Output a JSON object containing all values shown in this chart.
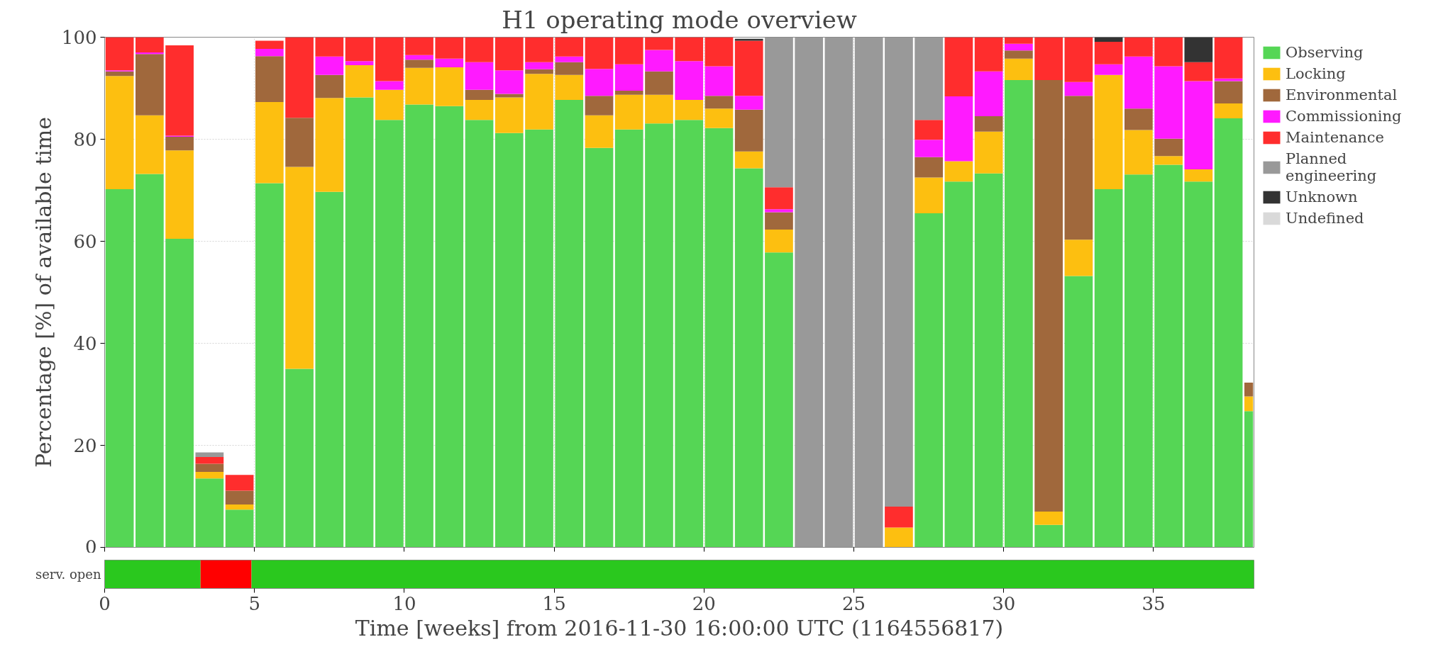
{
  "chart_data": [
    {
      "type": "bar",
      "stacked": true,
      "title": "H1 operating mode overview",
      "ylabel": "Percentage [%] of available time",
      "x": [
        0.5,
        1.5,
        2.5,
        3.5,
        4.5,
        5.5,
        6.5,
        7.5,
        8.5,
        9.5,
        10.5,
        11.5,
        12.5,
        13.5,
        14.5,
        15.5,
        16.5,
        17.5,
        18.5,
        19.5,
        20.5,
        21.5,
        22.5,
        23.5,
        24.5,
        25.5,
        26.5,
        27.5,
        28.5,
        29.5,
        30.5,
        31.5,
        32.5,
        33.5,
        34.5,
        35.5,
        36.5,
        37.5,
        38.175
      ],
      "xlim": [
        0,
        38.35
      ],
      "ylim": [
        0,
        100
      ],
      "xticks": [
        0,
        5,
        10,
        15,
        20,
        25,
        30,
        35
      ],
      "yticks": [
        0,
        20,
        40,
        60,
        80,
        100
      ],
      "tick_labels": "y",
      "grid": true,
      "legend": "right",
      "series": [
        {
          "name": "Observing",
          "color": "#55d655",
          "values": [
            70.2,
            73.2,
            60.5,
            13.5,
            7.4,
            71.4,
            35.0,
            69.7,
            88.2,
            83.8,
            86.8,
            86.5,
            83.8,
            81.2,
            81.9,
            87.7,
            78.3,
            81.9,
            83.1,
            83.8,
            82.2,
            74.3,
            57.8,
            0,
            0,
            0,
            0,
            65.5,
            71.7,
            73.3,
            91.6,
            4.4,
            53.2,
            70.2,
            73.1,
            75.0,
            71.7,
            84.1,
            26.7
          ]
        },
        {
          "name": "Locking",
          "color": "#fdbf10",
          "values": [
            22.2,
            11.5,
            17.3,
            1.3,
            1.0,
            15.9,
            39.6,
            18.4,
            6.3,
            5.9,
            7.2,
            7.6,
            3.9,
            7.0,
            10.9,
            4.9,
            6.4,
            6.8,
            5.6,
            3.9,
            3.8,
            3.3,
            4.5,
            0,
            0,
            0,
            3.9,
            7.0,
            4.0,
            8.2,
            4.2,
            2.6,
            7.1,
            22.4,
            8.7,
            1.7,
            2.4,
            2.9,
            2.9
          ]
        },
        {
          "name": "Environmental",
          "color": "#a0683c",
          "values": [
            0.9,
            12.0,
            2.7,
            1.6,
            2.7,
            9.0,
            9.6,
            4.5,
            0,
            0,
            1.6,
            0,
            2.0,
            0.7,
            0.9,
            2.5,
            3.8,
            0.8,
            4.6,
            0,
            2.5,
            8.2,
            3.4,
            0,
            0,
            0,
            0,
            4.0,
            0,
            3.0,
            1.6,
            84.6,
            28.2,
            0,
            4.2,
            3.4,
            0,
            4.4,
            2.7
          ]
        },
        {
          "name": "Commissioning",
          "color": "#ff1aff",
          "values": [
            0.2,
            0.3,
            0.2,
            0,
            0,
            1.4,
            0,
            3.6,
            0.8,
            1.7,
            0.9,
            1.7,
            5.4,
            4.6,
            1.4,
            1.1,
            5.3,
            5.2,
            4.2,
            7.6,
            5.8,
            2.7,
            0.6,
            0,
            0,
            0,
            0,
            3.4,
            12.7,
            8.8,
            1.3,
            0,
            2.7,
            2.1,
            10.2,
            14.2,
            17.3,
            0.5,
            0
          ]
        },
        {
          "name": "Maintenance",
          "color": "#ff2d2d",
          "values": [
            6.5,
            3.0,
            17.7,
            1.3,
            3.1,
            1.6,
            15.8,
            3.8,
            4.7,
            8.6,
            3.5,
            4.2,
            4.9,
            6.5,
            4.9,
            3.8,
            6.2,
            5.3,
            2.5,
            4.7,
            5.7,
            10.8,
            4.3,
            0,
            0,
            0,
            4.1,
            3.9,
            11.6,
            6.7,
            1.3,
            8.4,
            8.8,
            4.4,
            3.8,
            5.7,
            3.7,
            8.1,
            0
          ]
        },
        {
          "name": "Planned engineering",
          "color": "#999999",
          "values": [
            0,
            0,
            0,
            0.9,
            0,
            0,
            0,
            0,
            0,
            0,
            0,
            0,
            0,
            0,
            0,
            0,
            0,
            0,
            0,
            0,
            0,
            0,
            29.4,
            100,
            100,
            100,
            92.0,
            16.2,
            0,
            0,
            0,
            0,
            0,
            0,
            0,
            0,
            0,
            0,
            0
          ]
        },
        {
          "name": "Unknown",
          "color": "#333333",
          "values": [
            0,
            0,
            0,
            0,
            0,
            0,
            0,
            0,
            0,
            0,
            0,
            0,
            0,
            0,
            0,
            0,
            0,
            0,
            0,
            0,
            0,
            0.4,
            0,
            0,
            0,
            0,
            0,
            0,
            0,
            0,
            0,
            0,
            0,
            0.9,
            0,
            0,
            4.9,
            0,
            0
          ]
        },
        {
          "name": "Undefined",
          "color": "#d9d9d9",
          "values": [
            0,
            0,
            0,
            0,
            0,
            0,
            0,
            0,
            0,
            0,
            0,
            0,
            0,
            0,
            0,
            0,
            0,
            0,
            0,
            0,
            0,
            0,
            0,
            0,
            0,
            0,
            0,
            0,
            0,
            0,
            0,
            0,
            0,
            0,
            0,
            0,
            0,
            0,
            0
          ]
        }
      ]
    },
    {
      "type": "bar",
      "orientation": "horizontal",
      "stacked": true,
      "categories": [
        "serv. open"
      ],
      "xlabel": "Time [weeks] from 2016-11-30 16:00:00 UTC (1164556817)",
      "xlim": [
        0,
        38.35
      ],
      "xticks": [
        0,
        5,
        10,
        15,
        20,
        25,
        30,
        35
      ],
      "series": [
        {
          "color": "#2ac81e",
          "values": [
            3.2
          ]
        },
        {
          "color": "#ff0000",
          "values": [
            1.7
          ]
        },
        {
          "color": "#2ac81e",
          "values": [
            33.45
          ]
        }
      ]
    }
  ]
}
